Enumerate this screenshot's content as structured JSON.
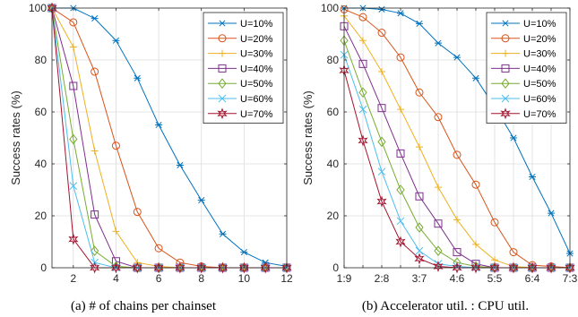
{
  "colors": [
    "#0072BD",
    "#D95319",
    "#EDB120",
    "#7E2F8E",
    "#77AC30",
    "#4DBEEE",
    "#A2142F"
  ],
  "markers": [
    "asterisk",
    "circle",
    "plus",
    "square",
    "diamond",
    "cross",
    "hexagram"
  ],
  "chart_data": [
    {
      "type": "line",
      "caption": "(a) # of chains per chainset",
      "ylabel": "Success rates (%)",
      "xlabel": "",
      "xlim": [
        1,
        12
      ],
      "ylim": [
        0,
        100
      ],
      "xticks": [
        "2",
        "4",
        "6",
        "8",
        "10",
        "12"
      ],
      "yticks": [
        "0",
        "20",
        "40",
        "60",
        "80",
        "100"
      ],
      "grid": true,
      "legend_position": "top-right",
      "x": [
        1,
        2,
        3,
        4,
        5,
        6,
        7,
        8,
        9,
        10,
        11,
        12
      ],
      "series": [
        {
          "name": "U=10%",
          "values": [
            100,
            100,
            96,
            87.5,
            73,
            55,
            39.5,
            26,
            13,
            6,
            2,
            0.5
          ]
        },
        {
          "name": "U=20%",
          "values": [
            100,
            94.5,
            75.5,
            47,
            21.5,
            7.5,
            2,
            0.5,
            0,
            0,
            0,
            0
          ]
        },
        {
          "name": "U=30%",
          "values": [
            100,
            85,
            45,
            14,
            2,
            0.5,
            0,
            0,
            0,
            0,
            0,
            0
          ]
        },
        {
          "name": "U=40%",
          "values": [
            100,
            70,
            20.5,
            2.5,
            0,
            0,
            0,
            0,
            0,
            0,
            0,
            0
          ]
        },
        {
          "name": "U=50%",
          "values": [
            100,
            49.5,
            6.5,
            0.5,
            0,
            0,
            0,
            0,
            0,
            0,
            0,
            0
          ]
        },
        {
          "name": "U=60%",
          "values": [
            100,
            31.5,
            2,
            0,
            0,
            0,
            0,
            0,
            0,
            0,
            0,
            0
          ]
        },
        {
          "name": "U=70%",
          "values": [
            100,
            11,
            0,
            0,
            0,
            0,
            0,
            0,
            0,
            0,
            0,
            0
          ]
        }
      ]
    },
    {
      "type": "line",
      "caption": "(b) Accelerator util. : CPU util.",
      "ylabel": "Success rates (%)",
      "xlabel": "",
      "xlim": [
        1,
        13
      ],
      "ylim": [
        0,
        100
      ],
      "categories": [
        "1:9",
        "",
        "2:8",
        "",
        "3:7",
        "",
        "4:6",
        "",
        "5:5",
        "",
        "6:4",
        "",
        "7:3"
      ],
      "yticks": [
        "0",
        "20",
        "40",
        "60",
        "80",
        "100"
      ],
      "grid": true,
      "legend_position": "top-right",
      "series": [
        {
          "name": "U=10%",
          "values": [
            100,
            100,
            99.5,
            98,
            94,
            86.5,
            81,
            73,
            62,
            50,
            35,
            21,
            5.5
          ]
        },
        {
          "name": "U=20%",
          "values": [
            99.5,
            96.5,
            90.5,
            81,
            67.5,
            58,
            43.5,
            32,
            17.5,
            6,
            1,
            0.5,
            0
          ]
        },
        {
          "name": "U=30%",
          "values": [
            97,
            87.5,
            75.5,
            61,
            46.5,
            31,
            18.5,
            9,
            3,
            0.5,
            0,
            0,
            0
          ]
        },
        {
          "name": "U=40%",
          "values": [
            93,
            78.5,
            61.5,
            44,
            27.5,
            17,
            6,
            1.5,
            0,
            0,
            0,
            0,
            0
          ]
        },
        {
          "name": "U=50%",
          "values": [
            87.5,
            67.5,
            48.5,
            30,
            15.5,
            6.5,
            2,
            0.5,
            0,
            0,
            0,
            0,
            0
          ]
        },
        {
          "name": "U=60%",
          "values": [
            82,
            61,
            37,
            18,
            6.5,
            1.5,
            0.5,
            0,
            0,
            0,
            0,
            0,
            0
          ]
        },
        {
          "name": "U=70%",
          "values": [
            76,
            49,
            25.5,
            10,
            3.5,
            0.5,
            0,
            0,
            0,
            0,
            0,
            0,
            0
          ]
        }
      ]
    }
  ]
}
